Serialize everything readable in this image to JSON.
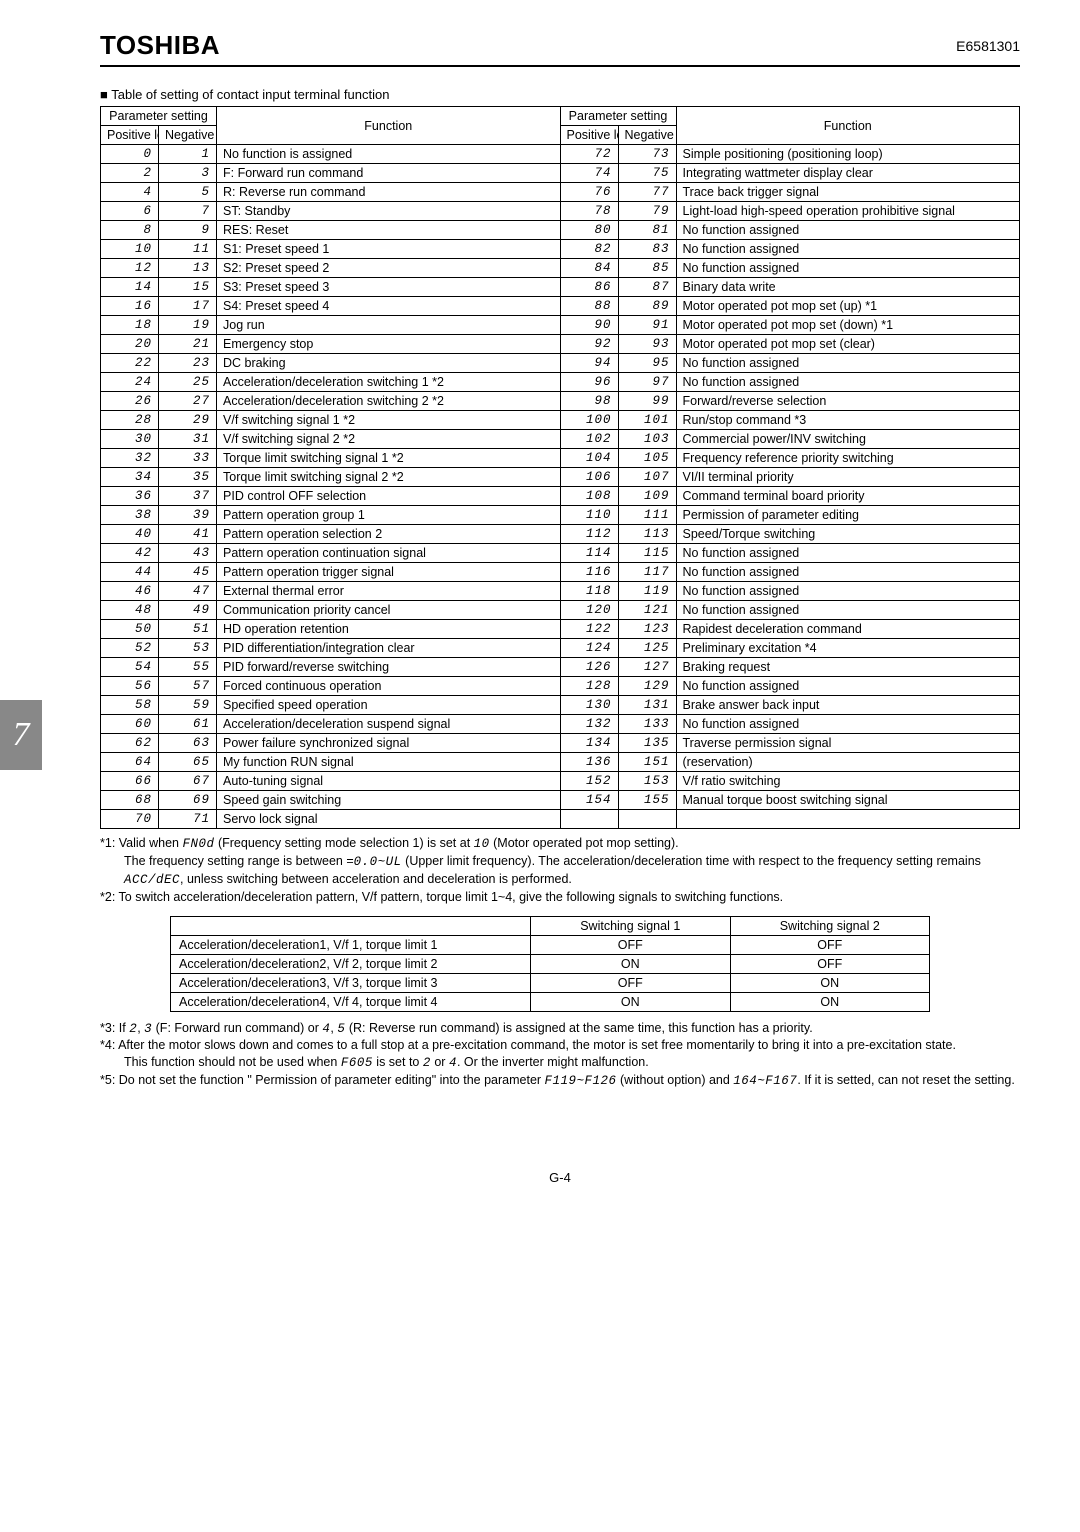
{
  "header": {
    "logo": "TOSHIBA",
    "docnum": "E6581301"
  },
  "side_tab": "7",
  "footer": "G-4",
  "table_title": "Table of setting of contact input terminal function",
  "table_headers": {
    "param_setting": "Parameter setting",
    "positive": "Positive logic",
    "negative": "Negative logic",
    "function": "Function"
  },
  "rows_left": [
    {
      "p": "0",
      "n": "1",
      "f": "No function is assigned"
    },
    {
      "p": "2",
      "n": "3",
      "f": "F: Forward run command"
    },
    {
      "p": "4",
      "n": "5",
      "f": "R: Reverse run command"
    },
    {
      "p": "6",
      "n": "7",
      "f": "ST: Standby"
    },
    {
      "p": "8",
      "n": "9",
      "f": "RES: Reset"
    },
    {
      "p": "10",
      "n": "11",
      "f": "S1: Preset speed 1"
    },
    {
      "p": "12",
      "n": "13",
      "f": "S2: Preset speed 2"
    },
    {
      "p": "14",
      "n": "15",
      "f": "S3: Preset speed 3"
    },
    {
      "p": "16",
      "n": "17",
      "f": "S4: Preset speed 4"
    },
    {
      "p": "18",
      "n": "19",
      "f": "Jog run"
    },
    {
      "p": "20",
      "n": "21",
      "f": "Emergency stop"
    },
    {
      "p": "22",
      "n": "23",
      "f": "DC braking"
    },
    {
      "p": "24",
      "n": "25",
      "f": "Acceleration/deceleration switching 1 *2"
    },
    {
      "p": "26",
      "n": "27",
      "f": "Acceleration/deceleration switching 2 *2"
    },
    {
      "p": "28",
      "n": "29",
      "f": "V/f switching signal 1                          *2"
    },
    {
      "p": "30",
      "n": "31",
      "f": "V/f switching signal 2                          *2"
    },
    {
      "p": "32",
      "n": "33",
      "f": "Torque limit switching signal 1            *2"
    },
    {
      "p": "34",
      "n": "35",
      "f": "Torque limit switching signal 2            *2"
    },
    {
      "p": "36",
      "n": "37",
      "f": "PID control OFF selection"
    },
    {
      "p": "38",
      "n": "39",
      "f": "Pattern operation group 1"
    },
    {
      "p": "40",
      "n": "41",
      "f": "Pattern operation selection 2"
    },
    {
      "p": "42",
      "n": "43",
      "f": "Pattern operation continuation signal"
    },
    {
      "p": "44",
      "n": "45",
      "f": "Pattern operation trigger signal"
    },
    {
      "p": "46",
      "n": "47",
      "f": "External thermal error"
    },
    {
      "p": "48",
      "n": "49",
      "f": "Communication priority cancel"
    },
    {
      "p": "50",
      "n": "51",
      "f": "HD operation retention"
    },
    {
      "p": "52",
      "n": "53",
      "f": "PID differentiation/integration clear"
    },
    {
      "p": "54",
      "n": "55",
      "f": "PID forward/reverse switching"
    },
    {
      "p": "56",
      "n": "57",
      "f": "Forced continuous operation"
    },
    {
      "p": "58",
      "n": "59",
      "f": "Specified speed operation"
    },
    {
      "p": "60",
      "n": "61",
      "f": "Acceleration/deceleration suspend signal"
    },
    {
      "p": "62",
      "n": "63",
      "f": "Power failure synchronized signal"
    },
    {
      "p": "64",
      "n": "65",
      "f": "My function RUN signal"
    },
    {
      "p": "66",
      "n": "67",
      "f": "Auto-tuning signal"
    },
    {
      "p": "68",
      "n": "69",
      "f": "Speed gain switching"
    },
    {
      "p": "70",
      "n": "71",
      "f": "Servo lock signal"
    }
  ],
  "rows_right": [
    {
      "p": "72",
      "n": "73",
      "f": "Simple positioning (positioning loop)"
    },
    {
      "p": "74",
      "n": "75",
      "f": "Integrating wattmeter display clear"
    },
    {
      "p": "76",
      "n": "77",
      "f": "Trace back trigger signal"
    },
    {
      "p": "78",
      "n": "79",
      "f": "Light-load high-speed operation prohibitive signal"
    },
    {
      "p": "80",
      "n": "81",
      "f": "No function assigned"
    },
    {
      "p": "82",
      "n": "83",
      "f": "No function assigned"
    },
    {
      "p": "84",
      "n": "85",
      "f": "No function assigned"
    },
    {
      "p": "86",
      "n": "87",
      "f": "Binary data write"
    },
    {
      "p": "88",
      "n": "89",
      "f": "Motor operated pot mop set (up) *1"
    },
    {
      "p": "90",
      "n": "91",
      "f": "Motor operated pot mop set (down) *1"
    },
    {
      "p": "92",
      "n": "93",
      "f": "Motor operated pot mop set (clear)"
    },
    {
      "p": "94",
      "n": "95",
      "f": "No function assigned"
    },
    {
      "p": "96",
      "n": "97",
      "f": "No function assigned"
    },
    {
      "p": "98",
      "n": "99",
      "f": "Forward/reverse selection"
    },
    {
      "p": "100",
      "n": "101",
      "f": "Run/stop command *3"
    },
    {
      "p": "102",
      "n": "103",
      "f": "Commercial power/INV switching"
    },
    {
      "p": "104",
      "n": "105",
      "f": "Frequency reference priority switching"
    },
    {
      "p": "106",
      "n": "107",
      "f": "VI/II terminal priority"
    },
    {
      "p": "108",
      "n": "109",
      "f": "Command terminal board priority"
    },
    {
      "p": "110",
      "n": "111",
      "f": "Permission of parameter editing"
    },
    {
      "p": "112",
      "n": "113",
      "f": "Speed/Torque switching"
    },
    {
      "p": "114",
      "n": "115",
      "f": "No function assigned"
    },
    {
      "p": "116",
      "n": "117",
      "f": "No function assigned"
    },
    {
      "p": "118",
      "n": "119",
      "f": "No function assigned"
    },
    {
      "p": "120",
      "n": "121",
      "f": "No function assigned"
    },
    {
      "p": "122",
      "n": "123",
      "f": "Rapidest deceleration command"
    },
    {
      "p": "124",
      "n": "125",
      "f": "Preliminary excitation *4"
    },
    {
      "p": "126",
      "n": "127",
      "f": "Braking request"
    },
    {
      "p": "128",
      "n": "129",
      "f": "No function assigned"
    },
    {
      "p": "130",
      "n": "131",
      "f": "Brake answer back input"
    },
    {
      "p": "132",
      "n": "133",
      "f": "No function assigned"
    },
    {
      "p": "134",
      "n": "135",
      "f": "Traverse permission signal"
    },
    {
      "p": "136",
      "n": "151",
      "f": "(reservation)"
    },
    {
      "p": "152",
      "n": "153",
      "f": "V/f ratio switching"
    },
    {
      "p": "154",
      "n": "155",
      "f": "Manual torque boost switching signal"
    },
    {
      "p": "",
      "n": "",
      "f": ""
    }
  ],
  "notes": {
    "n1a": "*1: Valid when ",
    "n1seg1": "FN0d",
    "n1b": " (Frequency setting mode selection 1) is set at ",
    "n1seg2": "10",
    "n1c": " (Motor operated pot mop setting).",
    "n1d": "The frequency setting range is between =",
    "n1seg3": "0.0~UL",
    "n1e": " (Upper limit frequency). The acceleration/deceleration time with respect to the frequency setting remains ",
    "n1seg4": "ACC/dEC",
    "n1f": ", unless switching between acceleration and deceleration is performed.",
    "n2": "*2: To switch acceleration/deceleration pattern, V/f pattern, torque limit 1~4, give the following signals to switching functions.",
    "n3a": "*3: If ",
    "n3seg1": "2",
    "n3b": ", ",
    "n3seg2": "3",
    "n3c": " (F: Forward run command) or ",
    "n3seg3": "4",
    "n3d": ", ",
    "n3seg4": "5",
    "n3e": " (R: Reverse run command) is assigned at the same time, this function has a priority.",
    "n4a": "*4: After the motor slows down and comes to a full stop at a pre-excitation command, the motor is set free momentarily to bring it into a pre-excitation state.",
    "n4b": "This function should not be used when ",
    "n4seg1": "F605",
    "n4c": " is set to ",
    "n4seg2": "2",
    "n4d": " or ",
    "n4seg3": "4",
    "n4e": ". Or the inverter might malfunction.",
    "n5a": "*5: Do not set the function \" Permission of parameter editing\" into the parameter ",
    "n5seg1": "F119~F126",
    "n5b": " (without option) and ",
    "n5seg2": "164~F167",
    "n5c": ". If it is setted, can not reset the setting."
  },
  "switch_table": {
    "headers": [
      "",
      "Switching signal 1",
      "Switching signal 2"
    ],
    "rows": [
      [
        "Acceleration/deceleration1, V/f 1, torque limit 1",
        "OFF",
        "OFF"
      ],
      [
        "Acceleration/deceleration2, V/f 2, torque limit 2",
        "ON",
        "OFF"
      ],
      [
        "Acceleration/deceleration3, V/f 3, torque limit 3",
        "OFF",
        "ON"
      ],
      [
        "Acceleration/deceleration4, V/f 4, torque limit 4",
        "ON",
        "ON"
      ]
    ]
  }
}
